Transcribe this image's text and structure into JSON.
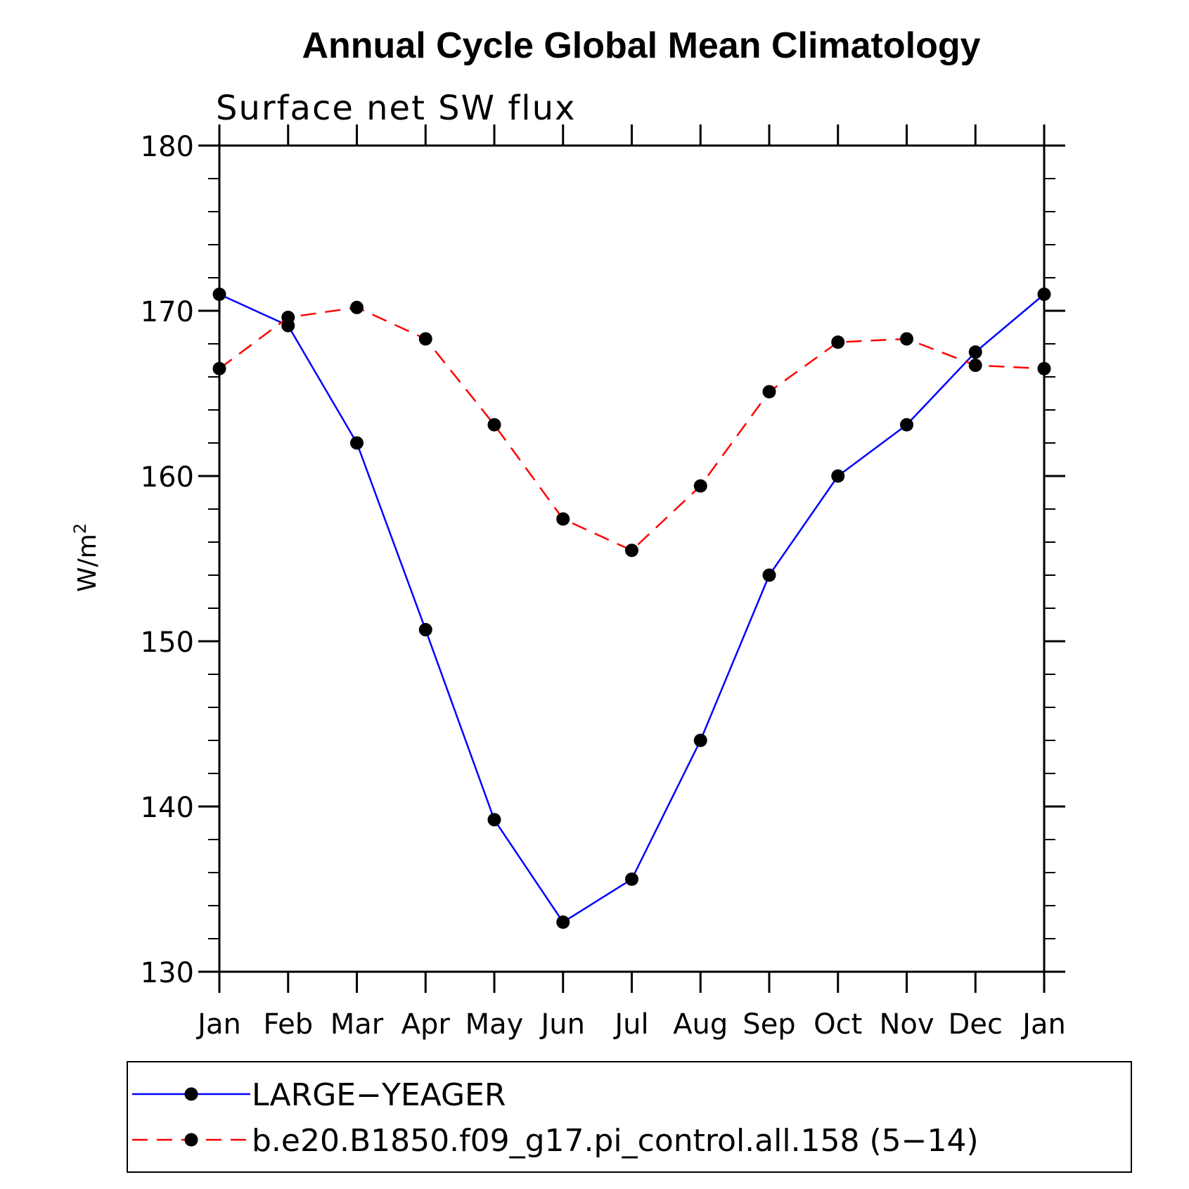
{
  "chart_data": {
    "type": "line",
    "title": "Annual Cycle Global Mean Climatology",
    "subtitle": "Surface net SW flux",
    "ylabel": "W/m",
    "ylabel_superscript": "2",
    "xlabel": "",
    "categories": [
      "Jan",
      "Feb",
      "Mar",
      "Apr",
      "May",
      "Jun",
      "Jul",
      "Aug",
      "Sep",
      "Oct",
      "Nov",
      "Dec",
      "Jan"
    ],
    "ylim": [
      130,
      180
    ],
    "yticks": [
      130,
      140,
      150,
      160,
      170,
      180
    ],
    "grid": false,
    "legend_position": "bottom",
    "series": [
      {
        "name": "LARGE−YEAGER",
        "color": "#0000ff",
        "dash": "solid",
        "marker": "filled-circle",
        "values": [
          171.0,
          169.1,
          162.0,
          150.7,
          139.2,
          133.0,
          135.6,
          144.0,
          154.0,
          160.0,
          163.1,
          167.5,
          171.0
        ]
      },
      {
        "name": "b.e20.B1850.f09_g17.pi_control.all.158 (5−14)",
        "color": "#ff0000",
        "dash": "dashed",
        "marker": "filled-circle",
        "values": [
          166.5,
          169.6,
          170.2,
          168.3,
          163.1,
          157.4,
          155.5,
          159.4,
          165.1,
          168.1,
          168.3,
          166.7,
          166.5
        ]
      }
    ]
  }
}
